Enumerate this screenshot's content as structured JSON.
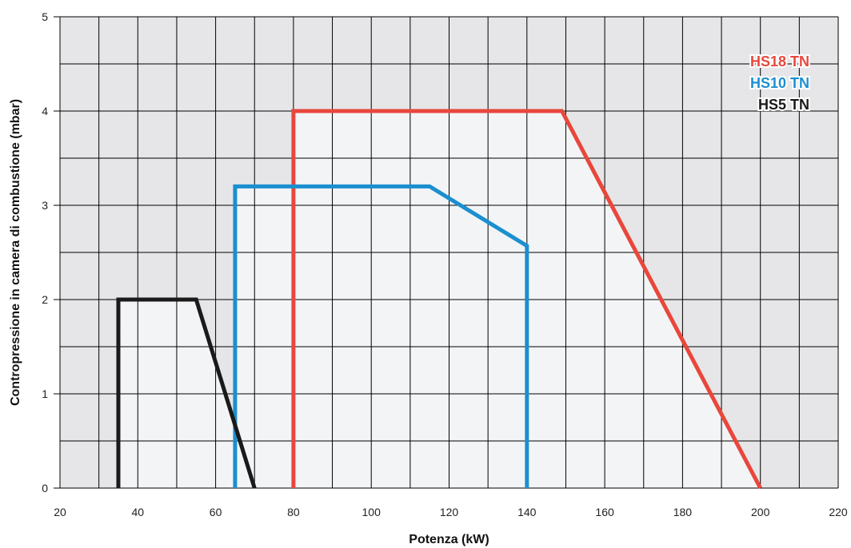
{
  "chart_data": {
    "type": "line",
    "title": "",
    "xlabel": "Potenza (kW)",
    "ylabel": "Contropressione in camera di combustione (mbar)",
    "xlim": [
      20,
      220
    ],
    "ylim": [
      0,
      5
    ],
    "x_ticks": [
      "20",
      "40",
      "60",
      "80",
      "100",
      "120",
      "140",
      "160",
      "180",
      "200",
      "220"
    ],
    "y_ticks": [
      "0",
      "1",
      "2",
      "3",
      "4",
      "5"
    ],
    "grid": true,
    "legend_position": "top-right",
    "series": [
      {
        "name": "HS18 TN",
        "color": "#e8473c",
        "points": [
          [
            80,
            0
          ],
          [
            80,
            4.0
          ],
          [
            149,
            4.0
          ],
          [
            200,
            0
          ]
        ]
      },
      {
        "name": "HS10 TN",
        "color": "#1b8fd0",
        "points": [
          [
            65,
            0
          ],
          [
            65,
            3.2
          ],
          [
            115,
            3.2
          ],
          [
            140,
            2.57
          ],
          [
            140,
            0
          ]
        ]
      },
      {
        "name": "HS5 TN",
        "color": "#1a1a1a",
        "points": [
          [
            35,
            0
          ],
          [
            35,
            2.0
          ],
          [
            55,
            2.0
          ],
          [
            70,
            0
          ]
        ]
      }
    ]
  },
  "colors": {
    "plot_background": "#e6e6e8",
    "region_fill": "#f3f4f6",
    "grid": "#000000"
  }
}
